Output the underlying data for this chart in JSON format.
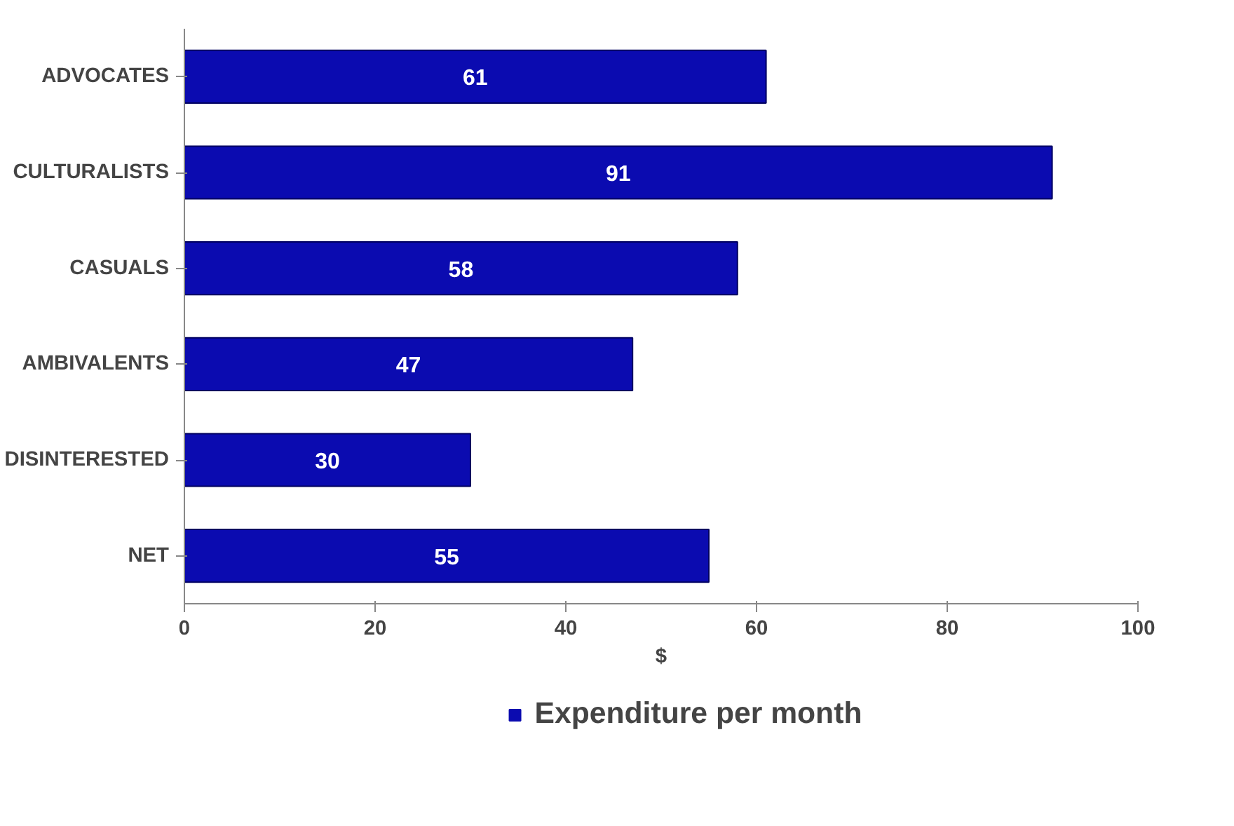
{
  "chart_data": {
    "type": "bar",
    "orientation": "horizontal",
    "xlabel": "$",
    "categories": [
      "ADVOCATES",
      "CULTURALISTS",
      "CASUALS",
      "AMBIVALENTS",
      "DISINTERESTED",
      "NET"
    ],
    "series": [
      {
        "name": "Expenditure per month",
        "color": "#0b0bb0",
        "values": [
          61,
          91,
          58,
          47,
          30,
          55
        ]
      }
    ],
    "xlim": [
      0,
      100
    ],
    "xticks": [
      0,
      20,
      40,
      60,
      80,
      100
    ],
    "grid": false,
    "legend": "bottom",
    "data_labels": true
  }
}
